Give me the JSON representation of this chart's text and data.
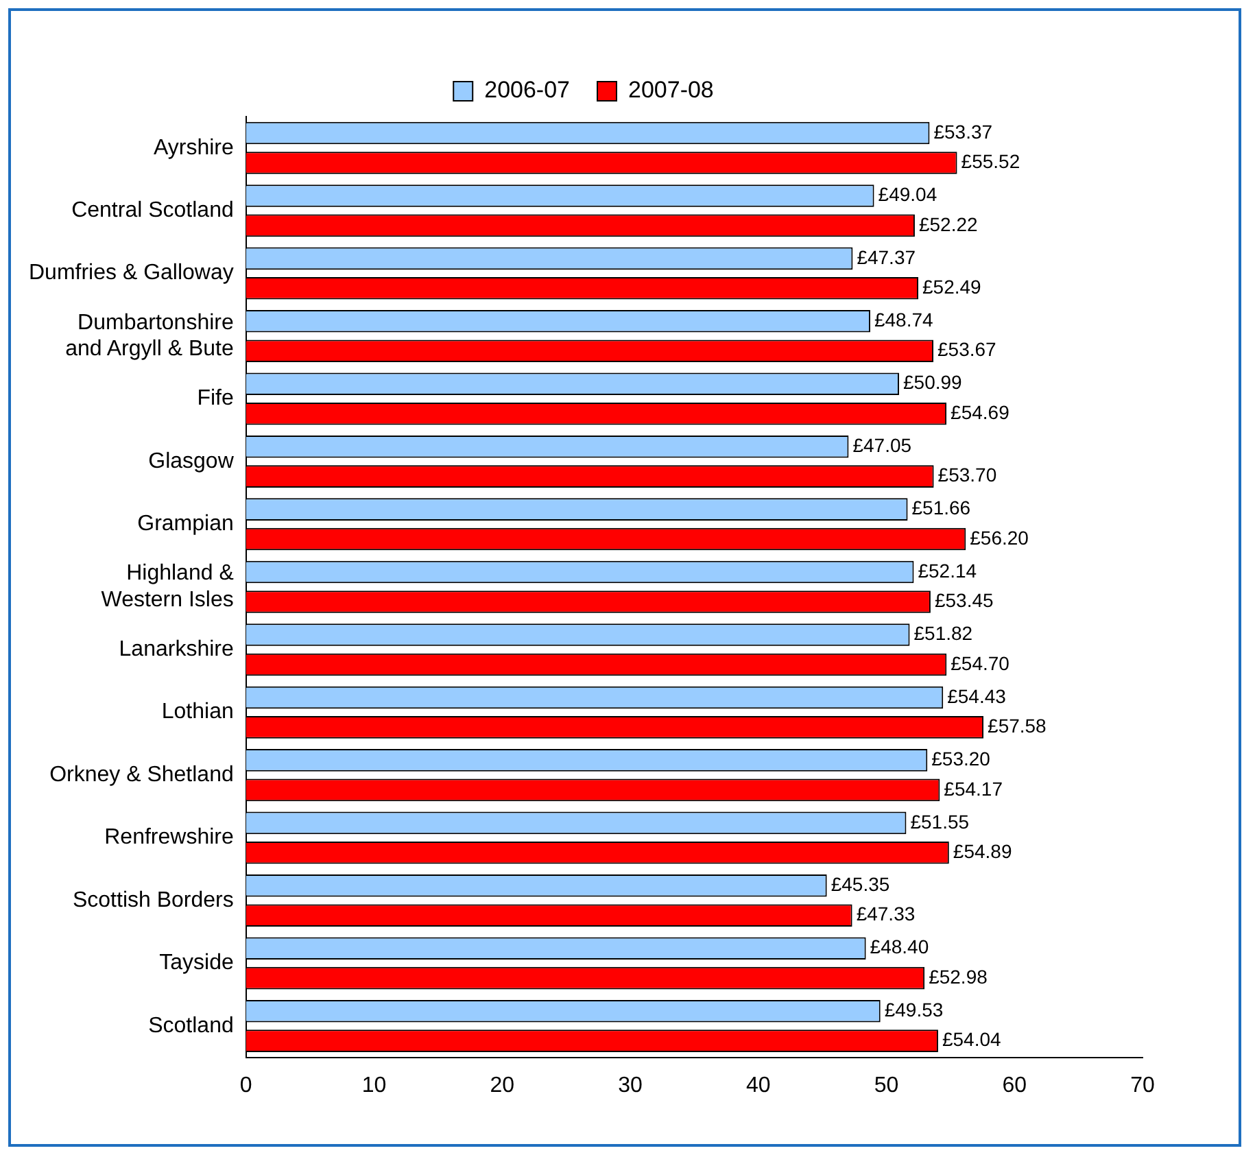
{
  "chart_data": {
    "type": "bar",
    "orientation": "horizontal",
    "legend": "top",
    "categories": [
      "Ayrshire",
      "Central Scotland",
      "Dumfries & Galloway",
      "Dumbartonshire\nand Argyll & Bute",
      "Fife",
      "Glasgow",
      "Grampian",
      "Highland &\nWestern Isles",
      "Lanarkshire",
      "Lothian",
      "Orkney & Shetland",
      "Renfrewshire",
      "Scottish Borders",
      "Tayside",
      "Scotland"
    ],
    "series": [
      {
        "name": "2006-07",
        "color": "#99ccff",
        "values": [
          53.37,
          49.04,
          47.37,
          48.74,
          50.99,
          47.05,
          51.66,
          52.14,
          51.82,
          54.43,
          53.2,
          51.55,
          45.35,
          48.4,
          49.53
        ],
        "value_labels": [
          "£53.37",
          "£49.04",
          "£47.37",
          "£48.74",
          "£50.99",
          "£47.05",
          "£51.66",
          "£52.14",
          "£51.82",
          "£54.43",
          "£53.20",
          "£51.55",
          "£45.35",
          "£48.40",
          "£49.53"
        ]
      },
      {
        "name": "2007-08",
        "color": "#ff0000",
        "values": [
          55.52,
          52.22,
          52.49,
          53.67,
          54.69,
          53.7,
          56.2,
          53.45,
          54.7,
          57.58,
          54.17,
          54.89,
          47.33,
          52.98,
          54.04
        ],
        "value_labels": [
          "£55.52",
          "£52.22",
          "£52.49",
          "£53.67",
          "£54.69",
          "£53.70",
          "£56.20",
          "£53.45",
          "£54.70",
          "£57.58",
          "£54.17",
          "£54.89",
          "£47.33",
          "£52.98",
          "£54.04"
        ]
      }
    ],
    "xlim": [
      0,
      70
    ],
    "xticks": [
      0,
      10,
      20,
      30,
      40,
      50,
      60,
      70
    ],
    "grid": false
  }
}
